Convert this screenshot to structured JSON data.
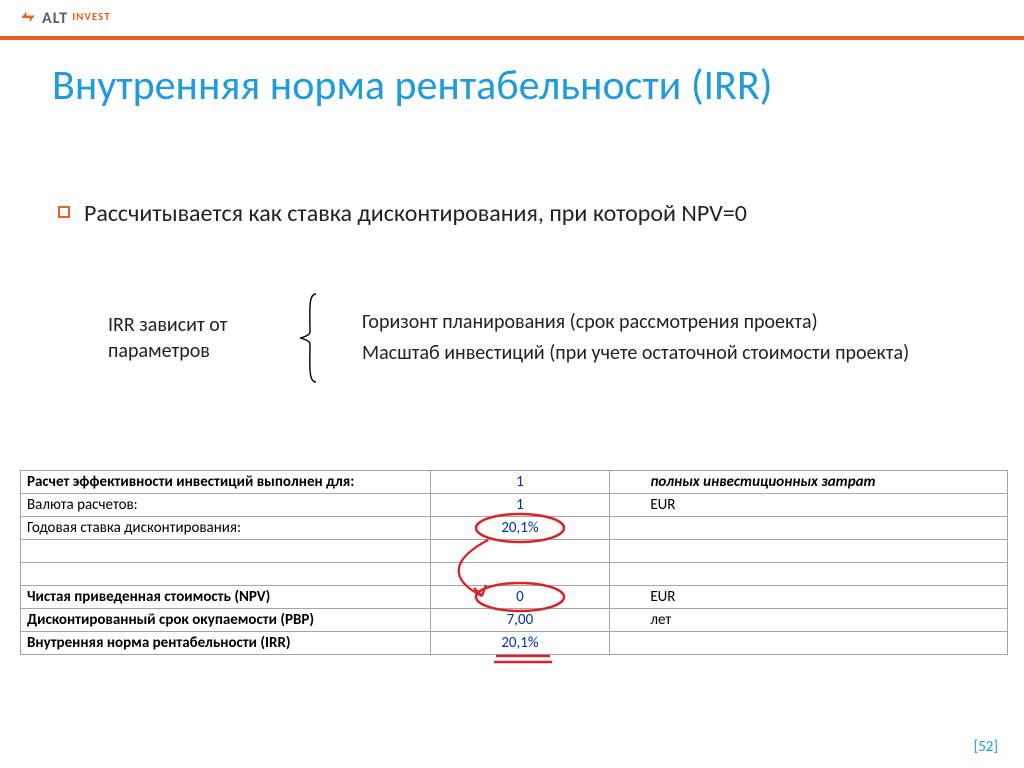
{
  "logo": {
    "alt": "ALT",
    "sub": "INVEST"
  },
  "title": "Внутренняя норма рентабельности (IRR)",
  "bullet": "Рассчитывается как ставка дисконтирования, при которой NPV=0",
  "params": {
    "left": "IRR зависит от параметров",
    "lines": [
      "Горизонт планирования (срок рассмотрения проекта)",
      "Масштаб инвестиций (при учете остаточной стоимости проекта)"
    ]
  },
  "table": {
    "rows": [
      {
        "label": "Расчет эффективности инвестиций выполнен для:",
        "value": "1",
        "unit": "полных инвестиционных затрат",
        "bold": true,
        "italicUnit": true
      },
      {
        "label": "Валюта расчетов:",
        "value": "1",
        "unit": "EUR",
        "bold": false
      },
      {
        "label": "Годовая ставка дисконтирования:",
        "value": "20,1%",
        "unit": "",
        "bold": false
      },
      {
        "label": "",
        "value": "",
        "unit": "",
        "bold": false,
        "empty": true
      },
      {
        "label": "",
        "value": "",
        "unit": "",
        "bold": false,
        "empty": true
      },
      {
        "label": "Чистая приведенная стоимость (NPV)",
        "value": "0",
        "unit": "EUR",
        "bold": true
      },
      {
        "label": "Дисконтированный срок окупаемости (PBP)",
        "value": "7,00",
        "unit": "лет",
        "bold": true
      },
      {
        "label": "Внутренняя норма рентабельности (IRR)",
        "value": "20,1%",
        "unit": "",
        "bold": true
      }
    ]
  },
  "colors": {
    "accent": "#e8611f",
    "title": "#1f9bde",
    "tableBorder": "#a5a5a5",
    "tableValue": "#0033a0",
    "annotation": "#d8232a"
  },
  "pageNumber": "[52]"
}
